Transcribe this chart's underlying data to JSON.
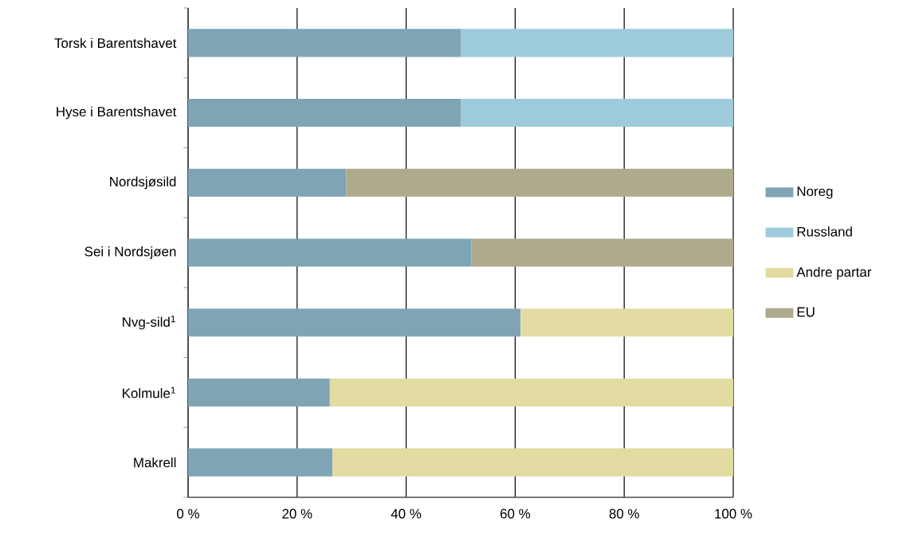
{
  "chart_data": {
    "type": "bar",
    "orientation": "horizontal",
    "stacked": true,
    "categories": [
      "Torsk i Barentshavet",
      "Hyse i Barentshavet",
      "Nordsjøsild",
      "Sei i Nordsjøen",
      "Nvg-sild$^{1}$",
      "Kolmule$^{1}$",
      "Makrell"
    ],
    "series": [
      {
        "name": "Noreg",
        "color": "#7fa5b5",
        "values": [
          50,
          50,
          29,
          52,
          61,
          26,
          26.5
        ]
      },
      {
        "name": "Russland",
        "color": "#9dcbdb",
        "values": [
          50,
          50,
          null,
          null,
          null,
          null,
          null
        ]
      },
      {
        "name": "Andre partar",
        "color": "#e2dba2",
        "values": [
          null,
          null,
          null,
          null,
          39,
          74,
          73.5
        ]
      },
      {
        "name": "EU",
        "color": "#aeaa8c",
        "values": [
          null,
          null,
          71,
          48,
          null,
          null,
          null
        ]
      }
    ],
    "xlim": [
      0,
      100
    ],
    "xticks": [
      {
        "value": 0,
        "label": "0 %"
      },
      {
        "value": 20,
        "label": "20 %"
      },
      {
        "value": 40,
        "label": "40 %"
      },
      {
        "value": 60,
        "label": "60 %"
      },
      {
        "value": 80,
        "label": "80 %"
      },
      {
        "value": 100,
        "label": "100 %"
      }
    ],
    "grid": "x",
    "legend": "right"
  }
}
